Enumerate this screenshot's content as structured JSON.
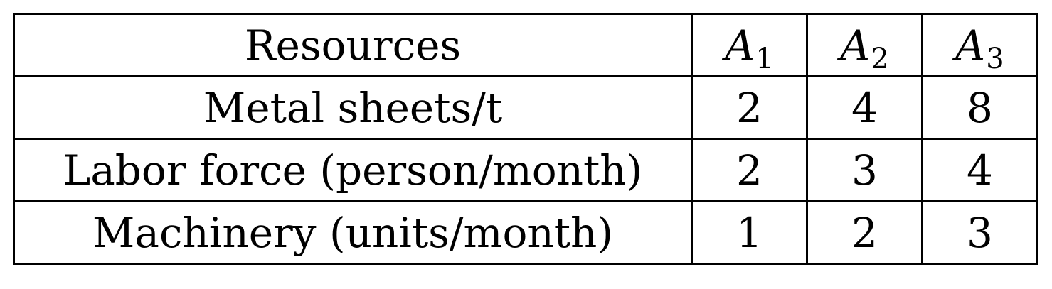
{
  "table": {
    "header": {
      "resources_label": "Resources",
      "columns": [
        {
          "var": "A",
          "sub": "1"
        },
        {
          "var": "A",
          "sub": "2"
        },
        {
          "var": "A",
          "sub": "3"
        }
      ]
    },
    "rows": [
      {
        "label": "Metal sheets/t",
        "values": [
          "2",
          "4",
          "8"
        ]
      },
      {
        "label": "Labor force (person/month)",
        "values": [
          "2",
          "3",
          "4"
        ]
      },
      {
        "label": "Machinery (units/month)",
        "values": [
          "1",
          "2",
          "3"
        ]
      }
    ]
  }
}
